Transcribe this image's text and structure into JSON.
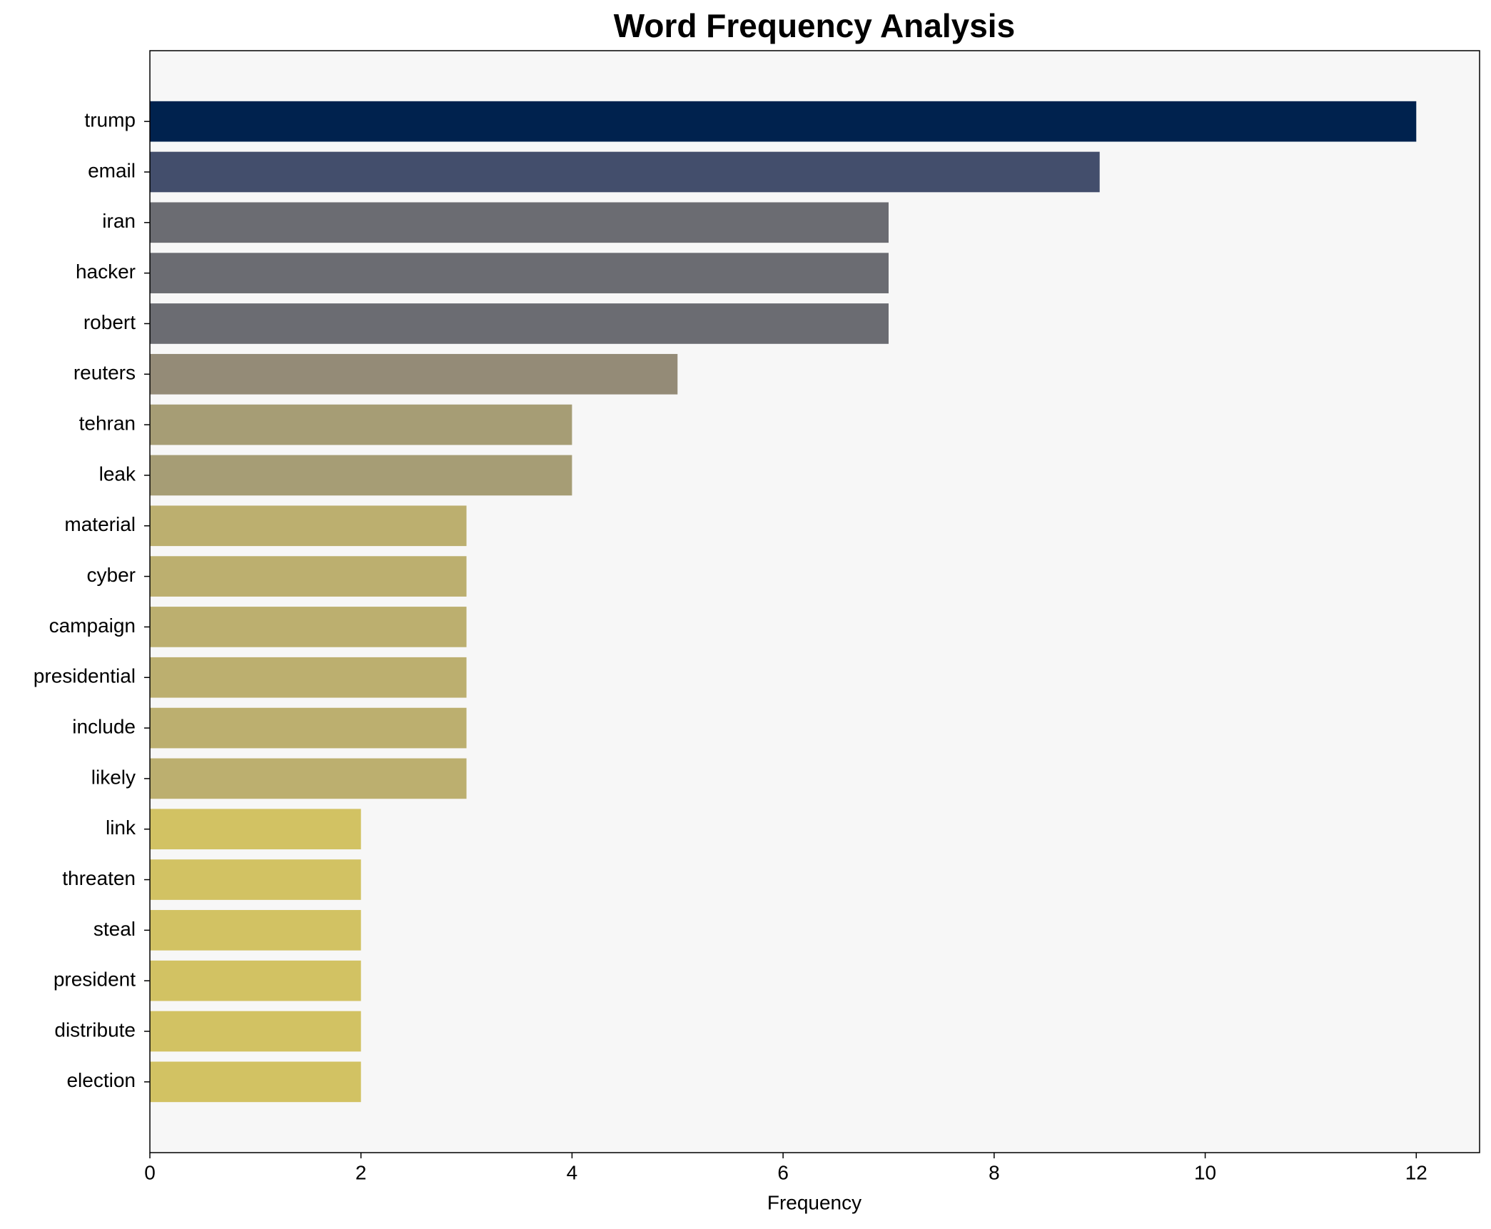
{
  "chart_data": {
    "type": "barh",
    "title": "Word Frequency Analysis",
    "xlabel": "Frequency",
    "categories": [
      "trump",
      "email",
      "iran",
      "hacker",
      "robert",
      "reuters",
      "tehran",
      "leak",
      "material",
      "cyber",
      "campaign",
      "presidential",
      "include",
      "likely",
      "link",
      "threaten",
      "steal",
      "president",
      "distribute",
      "election"
    ],
    "values": [
      12,
      9,
      7,
      7,
      7,
      5,
      4,
      4,
      3,
      3,
      3,
      3,
      3,
      3,
      2,
      2,
      2,
      2,
      2,
      2
    ],
    "colors": [
      "#00224e",
      "#434e6c",
      "#6b6c72",
      "#6b6c72",
      "#6b6c72",
      "#948b77",
      "#a69d75",
      "#a69d75",
      "#bcaf6f",
      "#bcaf6f",
      "#bcaf6f",
      "#bcaf6f",
      "#bcaf6f",
      "#bcaf6f",
      "#d2c263",
      "#d2c263",
      "#d2c263",
      "#d2c263",
      "#d2c263",
      "#d2c263"
    ],
    "xlim": [
      0,
      12.6
    ],
    "xticks": [
      0,
      2,
      4,
      6,
      8,
      10,
      12
    ]
  }
}
